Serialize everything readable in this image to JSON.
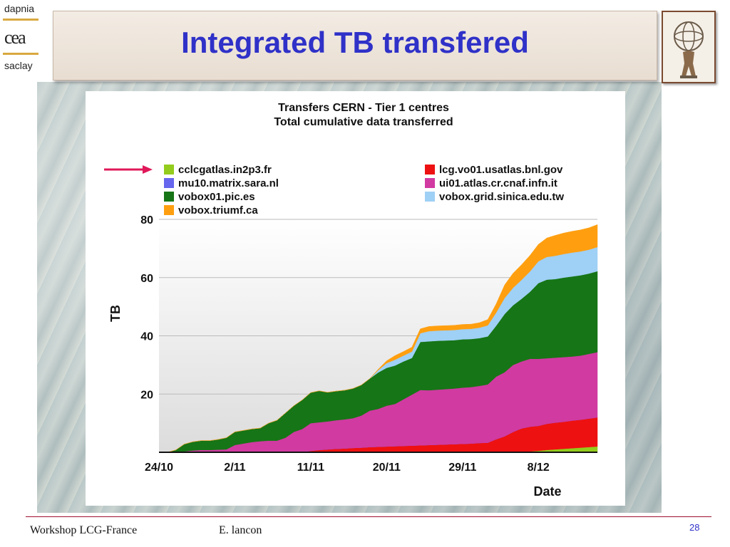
{
  "logo": {
    "top": "dapnia",
    "middle": "cea",
    "bottom": "saclay"
  },
  "slide_title": "Integrated TB transfered",
  "footer": {
    "event": "Workshop LCG-France",
    "author": "E. lancon",
    "page": "28"
  },
  "colors": {
    "title": "#2f31c8",
    "arrow": "#e0185a"
  },
  "chart_data": {
    "type": "area",
    "stacked": true,
    "title": "Transfers CERN - Tier 1 centres",
    "subtitle": "Total cumulative data transferred",
    "xlabel": "Date",
    "ylabel": "TB",
    "ylim": [
      0,
      80
    ],
    "yticks": [
      20,
      40,
      60,
      80
    ],
    "xticks": [
      "24/10",
      "2/11",
      "11/11",
      "20/11",
      "29/11",
      "8/12"
    ],
    "xtick_days": [
      0,
      9,
      18,
      27,
      36,
      45
    ],
    "grid": true,
    "legend_placement": "top",
    "x_days": [
      0,
      1,
      2,
      3,
      4,
      5,
      6,
      7,
      8,
      9,
      10,
      11,
      12,
      13,
      14,
      15,
      16,
      17,
      18,
      19,
      20,
      21,
      22,
      23,
      24,
      25,
      26,
      27,
      28,
      29,
      30,
      31,
      32,
      33,
      34,
      35,
      36,
      37,
      38,
      39,
      40,
      41,
      42,
      43,
      44,
      45,
      46,
      47,
      48,
      49,
      50,
      51,
      52
    ],
    "series": [
      {
        "name": "cclcgatlas.in2p3.fr",
        "color": "#93cc1c",
        "values": [
          0,
          0,
          0,
          0,
          0,
          0,
          0,
          0,
          0,
          0,
          0,
          0,
          0,
          0,
          0,
          0,
          0,
          0,
          0,
          0,
          0,
          0,
          0,
          0,
          0,
          0,
          0,
          0,
          0,
          0,
          0,
          0,
          0,
          0,
          0,
          0,
          0,
          0,
          0,
          0,
          0,
          0,
          0,
          0,
          0.3,
          0.5,
          0.8,
          1.0,
          1.2,
          1.4,
          1.6,
          1.8,
          2.0
        ]
      },
      {
        "name": "lcg.vo01.usatlas.bnl.gov",
        "color": "#ee1111",
        "values": [
          0,
          0,
          0,
          0,
          0,
          0,
          0,
          0,
          0,
          0,
          0,
          0,
          0,
          0,
          0,
          0,
          0,
          0,
          0.5,
          0.8,
          1.0,
          1.2,
          1.3,
          1.5,
          1.6,
          1.8,
          1.9,
          2.0,
          2.1,
          2.2,
          2.3,
          2.4,
          2.5,
          2.6,
          2.7,
          2.8,
          2.9,
          3.0,
          3.2,
          3.3,
          4.5,
          5.5,
          7.0,
          8.2,
          8.5,
          8.6,
          9.0,
          9.2,
          9.3,
          9.5,
          9.6,
          9.8,
          10.0
        ]
      },
      {
        "name": "mu10.matrix.sara.nl",
        "color": "#6666ee",
        "values": [
          0,
          0,
          0,
          0,
          0,
          0,
          0,
          0,
          0,
          0,
          0,
          0,
          0,
          0,
          0,
          0,
          0,
          0,
          0,
          0,
          0,
          0,
          0,
          0,
          0,
          0,
          0,
          0,
          0,
          0,
          0,
          0,
          0,
          0,
          0,
          0,
          0,
          0,
          0,
          0,
          0,
          0,
          0,
          0,
          0,
          0,
          0,
          0,
          0,
          0,
          0,
          0,
          0
        ]
      },
      {
        "name": "ui01.atlas.cr.cnaf.infn.it",
        "color": "#d13aa1",
        "values": [
          0,
          0,
          0,
          0.3,
          0.6,
          0.8,
          0.8,
          0.9,
          1.0,
          2.5,
          3.0,
          3.5,
          3.8,
          4.0,
          4.0,
          5.0,
          7.0,
          8.0,
          9.5,
          9.5,
          9.6,
          9.8,
          10.0,
          10.2,
          11.0,
          12.5,
          13.0,
          14.0,
          14.5,
          16.0,
          17.5,
          19.0,
          18.8,
          18.9,
          19.0,
          19.1,
          19.3,
          19.4,
          19.6,
          20.0,
          21.5,
          22.0,
          23.0,
          23.0,
          23.3,
          23.0,
          22.5,
          22.3,
          22.2,
          22.0,
          22.0,
          22.2,
          22.4
        ]
      },
      {
        "name": "vobox01.pic.es",
        "color": "#167516",
        "values": [
          0,
          0,
          0.8,
          2.5,
          3.0,
          3.2,
          3.2,
          3.5,
          4.0,
          4.5,
          4.5,
          4.5,
          4.5,
          6.0,
          7.0,
          8.5,
          9.0,
          10.0,
          10.5,
          10.8,
          10.0,
          10.0,
          10.0,
          10.2,
          10.5,
          11.0,
          12.5,
          13.0,
          13.2,
          13.0,
          12.6,
          16.5,
          16.8,
          16.8,
          16.7,
          16.6,
          16.6,
          16.5,
          16.4,
          16.5,
          17.5,
          20.0,
          20.5,
          21.5,
          23.0,
          26.0,
          27.0,
          27.0,
          27.3,
          27.5,
          27.6,
          27.6,
          27.8
        ]
      },
      {
        "name": "vobox.grid.sinica.edu.tw",
        "color": "#9fd0f5",
        "values": [
          0,
          0,
          0,
          0,
          0,
          0,
          0,
          0,
          0,
          0,
          0,
          0,
          0,
          0,
          0,
          0,
          0,
          0,
          0,
          0,
          0,
          0,
          0,
          0,
          0,
          0,
          0.8,
          1.6,
          2.0,
          2.0,
          2.2,
          3.0,
          3.5,
          3.5,
          3.5,
          3.5,
          3.5,
          3.5,
          3.6,
          3.8,
          4.5,
          5.5,
          6.0,
          6.5,
          7.0,
          7.5,
          7.8,
          8.0,
          8.1,
          8.2,
          8.2,
          8.2,
          8.3
        ]
      },
      {
        "name": "vobox.triumf.ca",
        "color": "#ff9f10",
        "values": [
          0,
          0,
          0,
          0,
          0,
          0,
          0,
          0,
          0,
          0,
          0,
          0,
          0,
          0,
          0,
          0,
          0,
          0,
          0,
          0,
          0,
          0,
          0,
          0,
          0,
          0,
          0.3,
          0.8,
          1.4,
          1.4,
          1.5,
          1.5,
          1.6,
          1.6,
          1.6,
          1.6,
          1.6,
          1.6,
          1.7,
          2.0,
          3.0,
          4.5,
          5.0,
          5.2,
          5.5,
          5.8,
          6.5,
          7.0,
          7.2,
          7.3,
          7.4,
          7.5,
          7.7
        ]
      }
    ],
    "legend_order": [
      [
        "cclcgatlas.in2p3.fr",
        "lcg.vo01.usatlas.bnl.gov"
      ],
      [
        "mu10.matrix.sara.nl",
        "ui01.atlas.cr.cnaf.infn.it"
      ],
      [
        "vobox01.pic.es",
        "vobox.grid.sinica.edu.tw"
      ],
      [
        "vobox.triumf.ca",
        null
      ]
    ]
  }
}
